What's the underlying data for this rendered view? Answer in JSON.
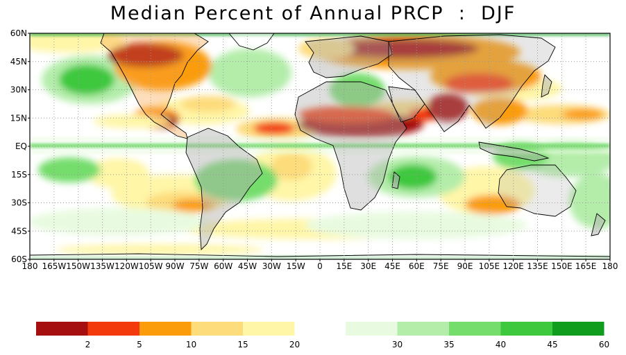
{
  "title": "Median Percent of Annual PRCP  :  DJF",
  "latitude_labels": [
    "60N",
    "45N",
    "30N",
    "15N",
    "EQ",
    "15S",
    "30S",
    "45S",
    "60S"
  ],
  "longitude_labels": [
    "180",
    "165W",
    "150W",
    "135W",
    "120W",
    "105W",
    "90W",
    "75W",
    "60W",
    "45W",
    "30W",
    "15W",
    "0",
    "15E",
    "30E",
    "45E",
    "60E",
    "75E",
    "90E",
    "105E",
    "120E",
    "135E",
    "150E",
    "165E",
    "180"
  ],
  "colorbar": {
    "low_swatches": [
      "#a50f0f",
      "#f23a0c",
      "#fb9c0a",
      "#fddc7c",
      "#fff6a8"
    ],
    "low_labels": [
      "2",
      "5",
      "10",
      "15",
      "20"
    ],
    "high_swatches": [
      "#e8fbe0",
      "#b4edaa",
      "#74dd6c",
      "#3ec83e",
      "#109c1c"
    ],
    "high_labels": [
      "30",
      "35",
      "40",
      "45",
      "60"
    ]
  },
  "colors": {
    "frame": "#000000",
    "grid": "#9a9a9a",
    "land_mask": "#b0b0b0",
    "coast": "#000000",
    "equator_band": "#3ec83e",
    "boundary_lines": "#c8c8c8"
  }
}
